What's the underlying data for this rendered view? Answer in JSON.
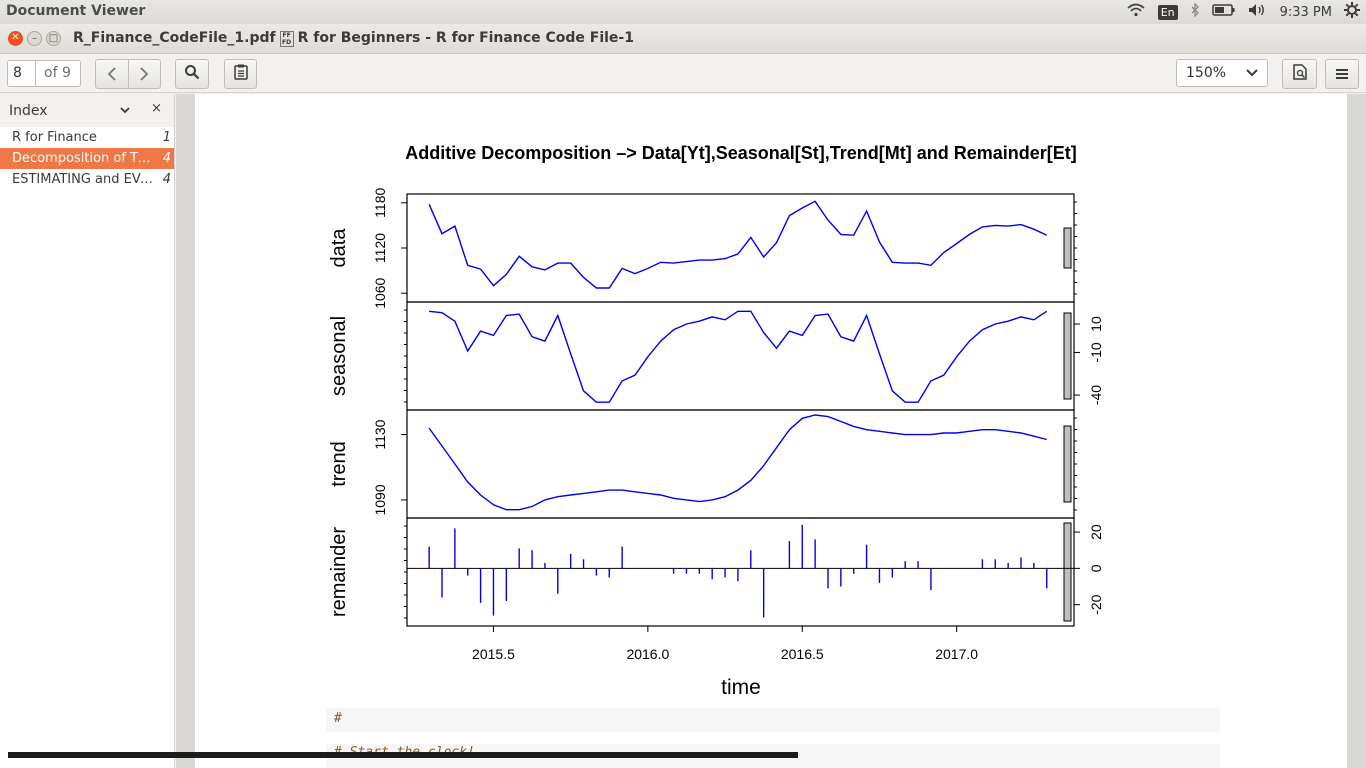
{
  "topbar": {
    "app_name": "Document Viewer",
    "lang": "En",
    "clock": "9:33 PM"
  },
  "window": {
    "title": "R_Finance_CodeFile_1.pdf",
    "subtitle": "R for Beginners - R for Finance Code File-1"
  },
  "toolbar": {
    "page_current": "8",
    "page_of": "of 9",
    "zoom": "150%"
  },
  "sidebar": {
    "header": "Index",
    "items": [
      {
        "label": "R for Finance",
        "page": "1",
        "selected": false
      },
      {
        "label": "Decomposition of Time Series",
        "page": "4",
        "selected": true
      },
      {
        "label": "ESTIMATING and EVALUATING",
        "page": "4",
        "selected": false
      }
    ]
  },
  "code": {
    "line1": "#",
    "line2": "# Start the clock!"
  },
  "chart_data": {
    "type": "line",
    "title": "Additive Decomposition –> Data[Yt],Seasonal[St],Trend[Mt] and Remainder[Et]",
    "xlabel": "time",
    "xlim": [
      2015.22,
      2017.38
    ],
    "x_ticks": [
      2015.5,
      2016.0,
      2016.5,
      2017.0
    ],
    "x_tick_labels": [
      "2015.5",
      "2016.0",
      "2016.5",
      "2017.0"
    ],
    "x": [
      2015.2917,
      2015.3333,
      2015.375,
      2015.4167,
      2015.4583,
      2015.5,
      2015.5417,
      2015.5833,
      2015.625,
      2015.6667,
      2015.7083,
      2015.75,
      2015.7917,
      2015.8333,
      2015.875,
      2015.9167,
      2015.9583,
      2016.0,
      2016.0417,
      2016.0833,
      2016.125,
      2016.1667,
      2016.2083,
      2016.25,
      2016.2917,
      2016.3333,
      2016.375,
      2016.4167,
      2016.4583,
      2016.5,
      2016.5417,
      2016.5833,
      2016.625,
      2016.6667,
      2016.7083,
      2016.75,
      2016.7917,
      2016.8333,
      2016.875,
      2016.9167,
      2016.9583,
      2017.0,
      2017.0417,
      2017.0833,
      2017.125,
      2017.1667,
      2017.2083,
      2017.25,
      2017.2917
    ],
    "panels": [
      {
        "name": "data",
        "ylim": [
          1055,
          1185
        ],
        "y_ticks": [
          1060,
          1120,
          1180
        ],
        "y_tick_labels": [
          "1060",
          "1120",
          "1180"
        ],
        "axis_side": "left",
        "style": "line",
        "values": [
          1178,
          1139,
          1149,
          1097,
          1092,
          1070,
          1085,
          1109,
          1095,
          1091,
          1100,
          1100,
          1081,
          1067,
          1067,
          1093,
          1086,
          1093,
          1101,
          1100,
          1102,
          1104,
          1104,
          1106,
          1112,
          1134,
          1108,
          1127,
          1163,
          1173,
          1182,
          1157,
          1138,
          1137,
          1169,
          1128,
          1101,
          1100,
          1100,
          1097,
          1114,
          1126,
          1138,
          1148,
          1150,
          1149,
          1151,
          1145,
          1137
        ]
      },
      {
        "name": "seasonal",
        "ylim": [
          -47,
          22
        ],
        "y_ticks": [
          -40,
          -10,
          10
        ],
        "y_tick_labels": [
          "-40",
          "-10",
          "10"
        ],
        "axis_side": "right",
        "style": "line",
        "values": [
          19,
          18,
          12,
          -9,
          5,
          2,
          16,
          17,
          1,
          -2,
          16,
          -11,
          -37,
          -45,
          -45,
          -30,
          -26,
          -13,
          -2,
          6,
          10,
          12,
          15,
          13,
          19,
          19,
          4,
          -7,
          5,
          2,
          16,
          17,
          1,
          -2,
          16,
          -11,
          -37,
          -45,
          -45,
          -30,
          -26,
          -13,
          -2,
          6,
          10,
          12,
          15,
          13,
          19
        ]
      },
      {
        "name": "trend",
        "ylim": [
          1082,
          1142
        ],
        "y_ticks": [
          1090,
          1130
        ],
        "y_tick_labels": [
          "1090",
          "1130"
        ],
        "axis_side": "left",
        "style": "line",
        "values": [
          1134,
          1123,
          1112,
          1101,
          1093,
          1087,
          1084,
          1084,
          1086,
          1090,
          1092,
          1093,
          1094,
          1095,
          1096,
          1096,
          1095,
          1094,
          1093,
          1091,
          1090,
          1089,
          1090,
          1092,
          1096,
          1102,
          1111,
          1122,
          1133,
          1140,
          1142,
          1141,
          1138,
          1135,
          1133,
          1132,
          1131,
          1130,
          1130,
          1130,
          1131,
          1131,
          1132,
          1133,
          1133,
          1132,
          1131,
          1129,
          1127
        ]
      },
      {
        "name": "remainder",
        "ylim": [
          -29,
          25
        ],
        "y_ticks": [
          -20,
          0,
          20
        ],
        "y_tick_labels": [
          "-20",
          "0",
          "20"
        ],
        "axis_side": "right",
        "style": "spikes",
        "values": [
          12,
          -16,
          22,
          -4,
          -19,
          -26,
          -18,
          11,
          10,
          3,
          -14,
          8,
          5,
          -4,
          -5,
          12,
          0,
          0,
          0,
          -3,
          -3,
          -3,
          -6,
          -5,
          -7,
          10,
          -27,
          0,
          15,
          24,
          16,
          -11,
          -10,
          -3,
          13,
          -8,
          -5,
          4,
          4,
          -12,
          0,
          0,
          0,
          5,
          5,
          3,
          6,
          3,
          -11
        ]
      }
    ]
  },
  "colors": {
    "accent": "#f07746",
    "line": "#0000ee",
    "close": "#e95420"
  }
}
